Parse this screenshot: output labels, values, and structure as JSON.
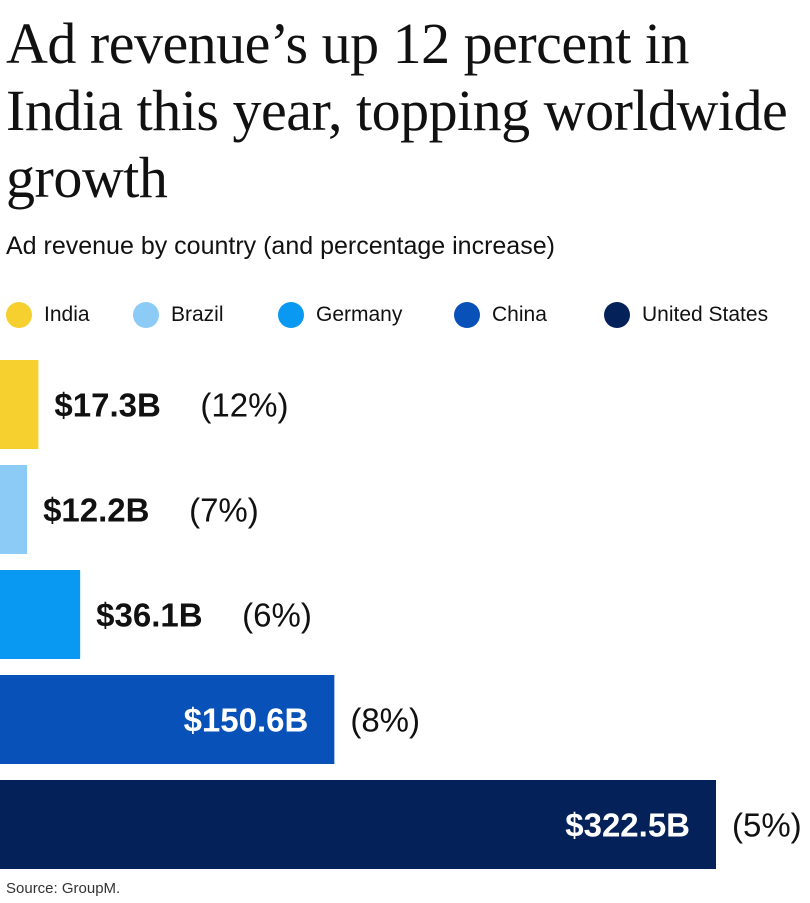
{
  "title": "Ad revenue’s up 12 percent in India this year, topping worldwide growth",
  "subtitle": "Ad revenue by country (and percentage increase)",
  "source": "Source: GroupM.",
  "colors": {
    "India": "#f5d02f",
    "Brazil": "#8ccbf6",
    "Germany": "#0a99f2",
    "China": "#0751b9",
    "United States": "#04215a"
  },
  "chart_data": {
    "type": "bar",
    "orientation": "horizontal",
    "categories": [
      "India",
      "Brazil",
      "Germany",
      "China",
      "United States"
    ],
    "values": [
      17.3,
      12.2,
      36.1,
      150.6,
      322.5
    ],
    "value_labels": [
      "$17.3B",
      "$12.2B",
      "$36.1B",
      "$150.6B",
      "$322.5B"
    ],
    "pct_labels": [
      "(12%)",
      "(7%)",
      "(6%)",
      "(8%)",
      "(5%)"
    ],
    "unit": "billion USD",
    "legend": [
      "India",
      "Brazil",
      "Germany",
      "China",
      "United States"
    ],
    "legend_position": "top",
    "grid": false
  }
}
